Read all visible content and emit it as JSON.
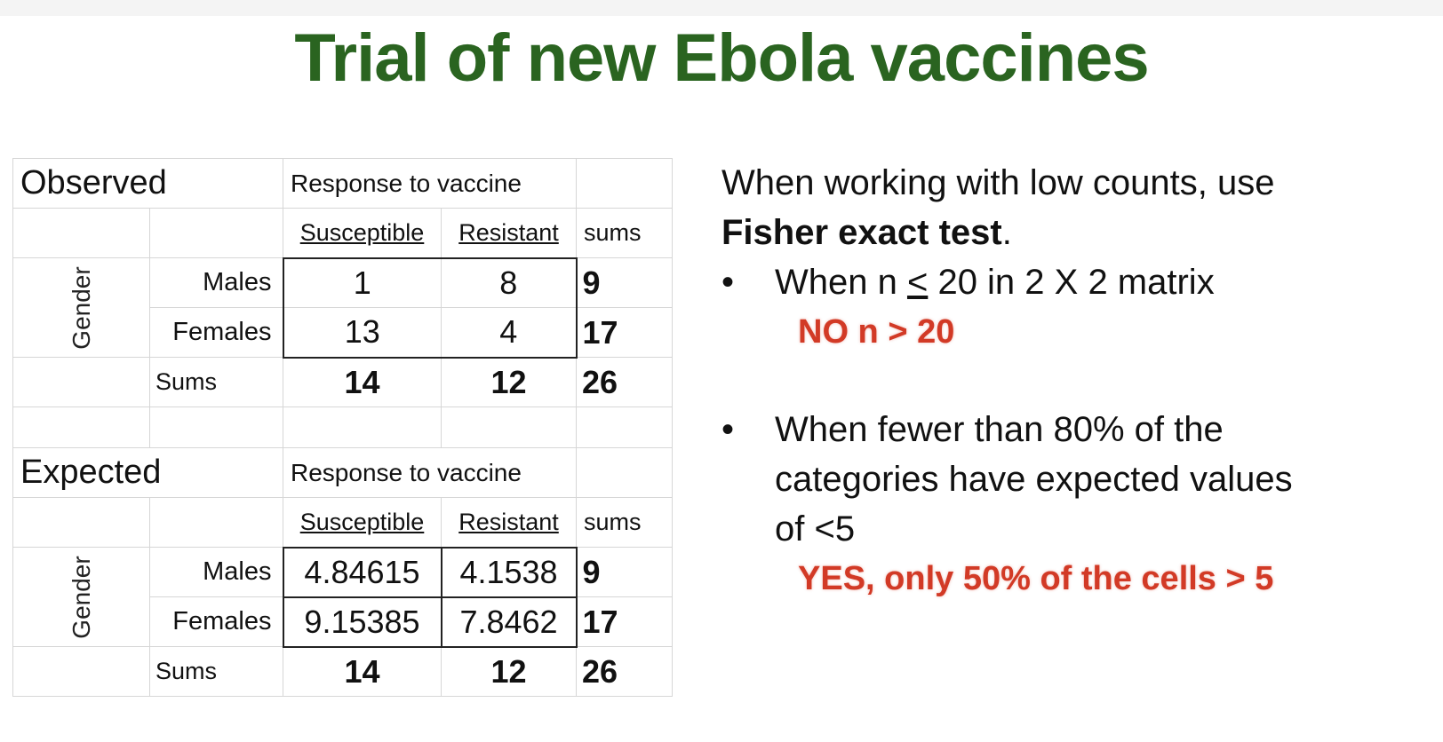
{
  "title": "Trial of new Ebola vaccines",
  "observed": {
    "label": "Observed",
    "response_header": "Response to vaccine",
    "col_headers": [
      "Susceptible",
      "Resistant"
    ],
    "sums_header": "sums",
    "group_label": "Gender",
    "rows": [
      {
        "label": "Males",
        "values": [
          "1",
          "8"
        ],
        "sum": "9"
      },
      {
        "label": "Females",
        "values": [
          "13",
          "4"
        ],
        "sum": "17"
      }
    ],
    "totals_label": "Sums",
    "totals": [
      "14",
      "12",
      "26"
    ]
  },
  "expected": {
    "label": "Expected",
    "response_header": "Response to vaccine",
    "col_headers": [
      "Susceptible",
      "Resistant"
    ],
    "sums_header": "sums",
    "group_label": "Gender",
    "rows": [
      {
        "label": "Males",
        "values": [
          "4.84615",
          "4.1538"
        ],
        "sum": "9"
      },
      {
        "label": "Females",
        "values": [
          "9.15385",
          "7.8462"
        ],
        "sum": "17"
      }
    ],
    "totals_label": "Sums",
    "totals": [
      "14",
      "12",
      "26"
    ]
  },
  "notes": {
    "intro": "When working with low counts, use",
    "intro_bold": "Fisher exact test",
    "intro_end": ".",
    "bullet_char": "•",
    "bullet1_pre": "When n ",
    "bullet1_le": "<",
    "bullet1_post": " 20 in 2 X 2 matrix",
    "answer1": "NO n > 20",
    "bullet2_line1": "When fewer than 80% of the",
    "bullet2_line2": "categories have expected values",
    "bullet2_line3": "of <5",
    "answer2": "YES, only 50% of the cells > 5"
  },
  "colors": {
    "title": "#2a6420",
    "answer": "#d23a26"
  }
}
